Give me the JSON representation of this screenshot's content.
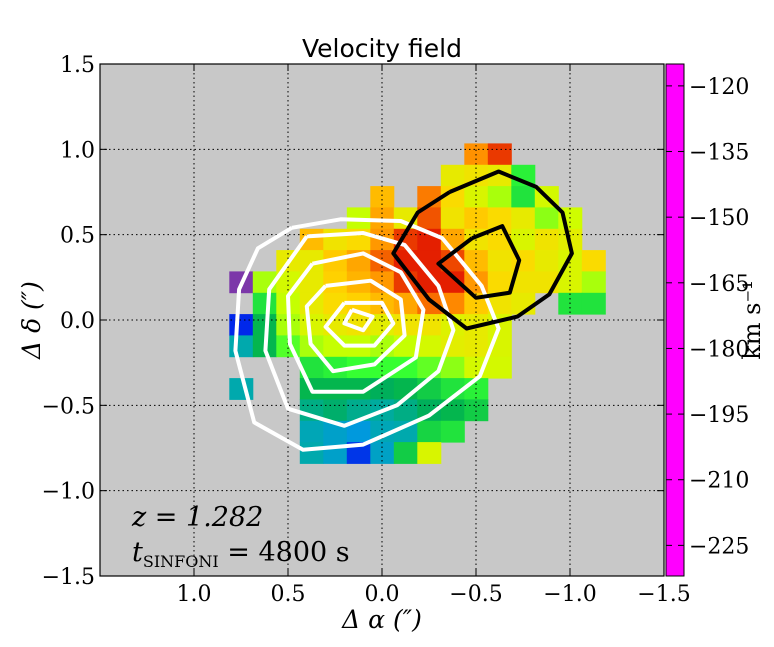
{
  "chart_data": {
    "type": "heatmap",
    "title": "Velocity field",
    "xlabel": "Δ α  (″)",
    "ylabel": "Δ δ  (″)",
    "xlim": [
      1.5,
      -1.5
    ],
    "ylim": [
      -1.5,
      1.5
    ],
    "x_ticks": [
      {
        "value": 1.0,
        "label": "1.0"
      },
      {
        "value": 0.5,
        "label": "0.5"
      },
      {
        "value": 0.0,
        "label": "0.0"
      },
      {
        "value": -0.5,
        "label": "−0.5"
      },
      {
        "value": -1.0,
        "label": "−1.0"
      },
      {
        "value": -1.5,
        "label": "−1.5"
      }
    ],
    "y_ticks": [
      {
        "value": 1.5,
        "label": "1.5"
      },
      {
        "value": 1.0,
        "label": "1.0"
      },
      {
        "value": 0.5,
        "label": "0.5"
      },
      {
        "value": 0.0,
        "label": "0.0"
      },
      {
        "value": -0.5,
        "label": "−0.5"
      },
      {
        "value": -1.0,
        "label": "−1.0"
      },
      {
        "value": -1.5,
        "label": "−1.5"
      }
    ],
    "grid": true,
    "background": "#c8c8c8",
    "pixel_size": 0.125,
    "colorbar": {
      "label": "km s⁻¹",
      "vmin": -232,
      "vmax": -115,
      "ticks": [
        {
          "value": -120,
          "label": "−120"
        },
        {
          "value": -135,
          "label": "−135"
        },
        {
          "value": -150,
          "label": "−150"
        },
        {
          "value": -165,
          "label": "−165"
        },
        {
          "value": -180,
          "label": "−180"
        },
        {
          "value": -195,
          "label": "−195"
        },
        {
          "value": -210,
          "label": "−210"
        },
        {
          "value": -225,
          "label": "−225"
        }
      ],
      "colormap": [
        "#ff00ff",
        "#dc0000",
        "#ff8c00",
        "#ffd700",
        "#ccff00",
        "#33ff33",
        "#00b050",
        "#00aaaa",
        "#0099dd",
        "#0000ee",
        "#550099",
        "#c8a0c8"
      ]
    },
    "pixels": [
      {
        "x": -0.5,
        "y": 0.972,
        "v": -137
      },
      {
        "x": -0.625,
        "y": 0.972,
        "v": -130
      },
      {
        "x": -0.375,
        "y": 0.847,
        "v": -152
      },
      {
        "x": -0.5,
        "y": 0.847,
        "v": -150
      },
      {
        "x": -0.625,
        "y": 0.847,
        "v": -152
      },
      {
        "x": -0.75,
        "y": 0.847,
        "v": -170
      },
      {
        "x": 0.0,
        "y": 0.722,
        "v": -143
      },
      {
        "x": -0.25,
        "y": 0.722,
        "v": -135
      },
      {
        "x": -0.375,
        "y": 0.722,
        "v": -148
      },
      {
        "x": -0.5,
        "y": 0.722,
        "v": -155
      },
      {
        "x": -0.625,
        "y": 0.722,
        "v": -160
      },
      {
        "x": -0.75,
        "y": 0.722,
        "v": -172
      },
      {
        "x": -0.875,
        "y": 0.722,
        "v": -156
      },
      {
        "x": 0.125,
        "y": 0.597,
        "v": -158
      },
      {
        "x": 0.0,
        "y": 0.597,
        "v": -140
      },
      {
        "x": -0.125,
        "y": 0.597,
        "v": -152
      },
      {
        "x": -0.25,
        "y": 0.597,
        "v": -132
      },
      {
        "x": -0.375,
        "y": 0.597,
        "v": -150
      },
      {
        "x": -0.5,
        "y": 0.597,
        "v": -145
      },
      {
        "x": -0.625,
        "y": 0.597,
        "v": -148
      },
      {
        "x": -0.75,
        "y": 0.597,
        "v": -152
      },
      {
        "x": -0.875,
        "y": 0.597,
        "v": -162
      },
      {
        "x": -1.0,
        "y": 0.597,
        "v": -157
      },
      {
        "x": 0.375,
        "y": 0.472,
        "v": -143
      },
      {
        "x": 0.25,
        "y": 0.472,
        "v": -150
      },
      {
        "x": 0.125,
        "y": 0.472,
        "v": -148
      },
      {
        "x": 0.0,
        "y": 0.472,
        "v": -138
      },
      {
        "x": -0.125,
        "y": 0.472,
        "v": -130
      },
      {
        "x": -0.25,
        "y": 0.472,
        "v": -128
      },
      {
        "x": -0.375,
        "y": 0.472,
        "v": -140
      },
      {
        "x": -0.5,
        "y": 0.472,
        "v": -150
      },
      {
        "x": -0.625,
        "y": 0.472,
        "v": -148
      },
      {
        "x": -0.75,
        "y": 0.472,
        "v": -155
      },
      {
        "x": -0.875,
        "y": 0.472,
        "v": -150
      },
      {
        "x": -1.0,
        "y": 0.472,
        "v": -153
      },
      {
        "x": 0.5,
        "y": 0.347,
        "v": -152
      },
      {
        "x": 0.375,
        "y": 0.347,
        "v": -152
      },
      {
        "x": 0.25,
        "y": 0.347,
        "v": -145
      },
      {
        "x": 0.125,
        "y": 0.347,
        "v": -140
      },
      {
        "x": 0.0,
        "y": 0.347,
        "v": -133
      },
      {
        "x": -0.125,
        "y": 0.347,
        "v": -128
      },
      {
        "x": -0.25,
        "y": 0.347,
        "v": -128
      },
      {
        "x": -0.375,
        "y": 0.347,
        "v": -131
      },
      {
        "x": -0.5,
        "y": 0.347,
        "v": -143
      },
      {
        "x": -0.625,
        "y": 0.347,
        "v": -150
      },
      {
        "x": -0.75,
        "y": 0.347,
        "v": -148
      },
      {
        "x": -0.875,
        "y": 0.347,
        "v": -152
      },
      {
        "x": -1.0,
        "y": 0.347,
        "v": -155
      },
      {
        "x": -1.125,
        "y": 0.347,
        "v": -148
      },
      {
        "x": 0.75,
        "y": 0.222,
        "v": -225
      },
      {
        "x": 0.625,
        "y": 0.222,
        "v": -160
      },
      {
        "x": 0.5,
        "y": 0.222,
        "v": -156
      },
      {
        "x": 0.375,
        "y": 0.222,
        "v": -152
      },
      {
        "x": 0.25,
        "y": 0.222,
        "v": -146
      },
      {
        "x": 0.125,
        "y": 0.222,
        "v": -142
      },
      {
        "x": 0.0,
        "y": 0.222,
        "v": -138
      },
      {
        "x": -0.125,
        "y": 0.222,
        "v": -130
      },
      {
        "x": -0.25,
        "y": 0.222,
        "v": -128
      },
      {
        "x": -0.375,
        "y": 0.222,
        "v": -128
      },
      {
        "x": -0.5,
        "y": 0.222,
        "v": -138
      },
      {
        "x": -0.625,
        "y": 0.222,
        "v": -148
      },
      {
        "x": -0.75,
        "y": 0.222,
        "v": -150
      },
      {
        "x": -0.875,
        "y": 0.222,
        "v": -150
      },
      {
        "x": -1.0,
        "y": 0.222,
        "v": -155
      },
      {
        "x": -1.125,
        "y": 0.222,
        "v": -160
      },
      {
        "x": 0.625,
        "y": 0.097,
        "v": -172
      },
      {
        "x": 0.5,
        "y": 0.097,
        "v": -158
      },
      {
        "x": 0.375,
        "y": 0.097,
        "v": -152
      },
      {
        "x": 0.25,
        "y": 0.097,
        "v": -148
      },
      {
        "x": 0.125,
        "y": 0.097,
        "v": -146
      },
      {
        "x": 0.0,
        "y": 0.097,
        "v": -143
      },
      {
        "x": -0.125,
        "y": 0.097,
        "v": -140
      },
      {
        "x": -0.25,
        "y": 0.097,
        "v": -134
      },
      {
        "x": -0.375,
        "y": 0.097,
        "v": -136
      },
      {
        "x": -0.5,
        "y": 0.097,
        "v": -145
      },
      {
        "x": -0.625,
        "y": 0.097,
        "v": -150
      },
      {
        "x": -0.75,
        "y": 0.097,
        "v": -152
      },
      {
        "x": -1.0,
        "y": 0.097,
        "v": -172
      },
      {
        "x": -1.125,
        "y": 0.097,
        "v": -172
      },
      {
        "x": 0.75,
        "y": -0.028,
        "v": -208
      },
      {
        "x": 0.625,
        "y": -0.028,
        "v": -178
      },
      {
        "x": 0.5,
        "y": -0.028,
        "v": -160
      },
      {
        "x": 0.375,
        "y": -0.028,
        "v": -155
      },
      {
        "x": 0.25,
        "y": -0.028,
        "v": -152
      },
      {
        "x": 0.125,
        "y": -0.028,
        "v": -150
      },
      {
        "x": 0.0,
        "y": -0.028,
        "v": -153
      },
      {
        "x": -0.125,
        "y": -0.028,
        "v": -150
      },
      {
        "x": -0.25,
        "y": -0.028,
        "v": -150
      },
      {
        "x": -0.375,
        "y": -0.028,
        "v": -154
      },
      {
        "x": -0.5,
        "y": -0.028,
        "v": -152
      },
      {
        "x": -0.625,
        "y": -0.028,
        "v": -155
      },
      {
        "x": 0.75,
        "y": -0.153,
        "v": -190
      },
      {
        "x": 0.625,
        "y": -0.153,
        "v": -178
      },
      {
        "x": 0.5,
        "y": -0.153,
        "v": -166
      },
      {
        "x": 0.375,
        "y": -0.153,
        "v": -160
      },
      {
        "x": 0.25,
        "y": -0.153,
        "v": -158
      },
      {
        "x": 0.125,
        "y": -0.153,
        "v": -158
      },
      {
        "x": 0.0,
        "y": -0.153,
        "v": -160
      },
      {
        "x": -0.125,
        "y": -0.153,
        "v": -158
      },
      {
        "x": -0.25,
        "y": -0.153,
        "v": -156
      },
      {
        "x": -0.375,
        "y": -0.153,
        "v": -153
      },
      {
        "x": -0.5,
        "y": -0.153,
        "v": -152
      },
      {
        "x": -0.625,
        "y": -0.153,
        "v": -155
      },
      {
        "x": 0.375,
        "y": -0.278,
        "v": -172
      },
      {
        "x": 0.25,
        "y": -0.278,
        "v": -170
      },
      {
        "x": 0.125,
        "y": -0.278,
        "v": -168
      },
      {
        "x": 0.0,
        "y": -0.278,
        "v": -168
      },
      {
        "x": -0.125,
        "y": -0.278,
        "v": -168
      },
      {
        "x": -0.25,
        "y": -0.278,
        "v": -165
      },
      {
        "x": -0.375,
        "y": -0.278,
        "v": -162
      },
      {
        "x": -0.5,
        "y": -0.278,
        "v": -156
      },
      {
        "x": -0.625,
        "y": -0.278,
        "v": -156
      },
      {
        "x": 0.75,
        "y": -0.403,
        "v": -190
      },
      {
        "x": 0.375,
        "y": -0.403,
        "v": -178
      },
      {
        "x": 0.25,
        "y": -0.403,
        "v": -178
      },
      {
        "x": 0.125,
        "y": -0.403,
        "v": -178
      },
      {
        "x": 0.0,
        "y": -0.403,
        "v": -180
      },
      {
        "x": -0.125,
        "y": -0.403,
        "v": -178
      },
      {
        "x": -0.25,
        "y": -0.403,
        "v": -175
      },
      {
        "x": -0.375,
        "y": -0.403,
        "v": -172
      },
      {
        "x": -0.5,
        "y": -0.403,
        "v": -170
      },
      {
        "x": 0.375,
        "y": -0.528,
        "v": -185
      },
      {
        "x": 0.25,
        "y": -0.528,
        "v": -182
      },
      {
        "x": 0.125,
        "y": -0.528,
        "v": -186
      },
      {
        "x": 0.0,
        "y": -0.528,
        "v": -188
      },
      {
        "x": -0.125,
        "y": -0.528,
        "v": -185
      },
      {
        "x": -0.25,
        "y": -0.528,
        "v": -180
      },
      {
        "x": -0.375,
        "y": -0.528,
        "v": -178
      },
      {
        "x": -0.5,
        "y": -0.528,
        "v": -175
      },
      {
        "x": 0.375,
        "y": -0.653,
        "v": -192
      },
      {
        "x": 0.25,
        "y": -0.653,
        "v": -196
      },
      {
        "x": 0.125,
        "y": -0.653,
        "v": -200
      },
      {
        "x": 0.0,
        "y": -0.653,
        "v": -192
      },
      {
        "x": -0.125,
        "y": -0.653,
        "v": -190
      },
      {
        "x": -0.25,
        "y": -0.653,
        "v": -174
      },
      {
        "x": -0.375,
        "y": -0.653,
        "v": -172
      },
      {
        "x": 0.375,
        "y": -0.778,
        "v": -190
      },
      {
        "x": 0.25,
        "y": -0.778,
        "v": -196
      },
      {
        "x": 0.125,
        "y": -0.778,
        "v": -207
      },
      {
        "x": 0.0,
        "y": -0.778,
        "v": -195
      },
      {
        "x": -0.125,
        "y": -0.778,
        "v": -175
      },
      {
        "x": -0.25,
        "y": -0.778,
        "v": -155
      }
    ],
    "contours_white": [
      [
        [
          0.48,
          0.54
        ],
        [
          0.22,
          0.59
        ],
        [
          -0.1,
          0.58
        ],
        [
          -0.32,
          0.48
        ],
        [
          -0.53,
          0.2
        ],
        [
          -0.62,
          -0.05
        ],
        [
          -0.52,
          -0.33
        ],
        [
          -0.25,
          -0.56
        ],
        [
          0.1,
          -0.73
        ],
        [
          0.42,
          -0.76
        ],
        [
          0.68,
          -0.6
        ],
        [
          0.78,
          -0.18
        ],
        [
          0.76,
          0.18
        ],
        [
          0.66,
          0.42
        ],
        [
          0.48,
          0.54
        ]
      ],
      [
        [
          0.4,
          0.49
        ],
        [
          0.1,
          0.51
        ],
        [
          -0.12,
          0.44
        ],
        [
          -0.3,
          0.2
        ],
        [
          -0.38,
          -0.06
        ],
        [
          -0.3,
          -0.3
        ],
        [
          -0.08,
          -0.5
        ],
        [
          0.2,
          -0.62
        ],
        [
          0.5,
          -0.52
        ],
        [
          0.62,
          -0.18
        ],
        [
          0.6,
          0.18
        ],
        [
          0.4,
          0.49
        ]
      ],
      [
        [
          0.37,
          0.33
        ],
        [
          0.1,
          0.39
        ],
        [
          -0.1,
          0.28
        ],
        [
          -0.22,
          0.06
        ],
        [
          -0.18,
          -0.22
        ],
        [
          0.1,
          -0.42
        ],
        [
          0.37,
          -0.42
        ],
        [
          0.49,
          -0.14
        ],
        [
          0.5,
          0.14
        ],
        [
          0.37,
          0.33
        ]
      ],
      [
        [
          0.3,
          0.2
        ],
        [
          0.06,
          0.23
        ],
        [
          -0.1,
          0.12
        ],
        [
          -0.12,
          -0.09
        ],
        [
          0.04,
          -0.26
        ],
        [
          0.26,
          -0.3
        ],
        [
          0.38,
          -0.14
        ],
        [
          0.4,
          0.08
        ],
        [
          0.3,
          0.2
        ]
      ],
      [
        [
          0.2,
          0.1
        ],
        [
          0.0,
          0.1
        ],
        [
          -0.06,
          -0.02
        ],
        [
          0.04,
          -0.15
        ],
        [
          0.2,
          -0.15
        ],
        [
          0.3,
          -0.04
        ],
        [
          0.2,
          0.1
        ]
      ],
      [
        [
          0.16,
          0.06
        ],
        [
          0.05,
          0.02
        ],
        [
          0.1,
          -0.06
        ],
        [
          0.2,
          -0.02
        ],
        [
          0.16,
          0.06
        ]
      ]
    ],
    "contours_black": [
      [
        [
          -0.36,
          0.75
        ],
        [
          -0.62,
          0.87
        ],
        [
          -0.82,
          0.78
        ],
        [
          -0.96,
          0.63
        ],
        [
          -1.01,
          0.39
        ],
        [
          -0.89,
          0.15
        ],
        [
          -0.72,
          0.02
        ],
        [
          -0.45,
          -0.05
        ],
        [
          -0.25,
          0.12
        ],
        [
          -0.06,
          0.39
        ],
        [
          -0.19,
          0.63
        ],
        [
          -0.36,
          0.75
        ]
      ],
      [
        [
          -0.48,
          0.48
        ],
        [
          -0.64,
          0.55
        ],
        [
          -0.73,
          0.35
        ],
        [
          -0.68,
          0.16
        ],
        [
          -0.5,
          0.13
        ],
        [
          -0.3,
          0.33
        ],
        [
          -0.48,
          0.48
        ]
      ]
    ]
  },
  "annotations": {
    "redshift": "z = 1.282",
    "exptime_prefix": "t",
    "exptime_sub": "SINFONI",
    "exptime_suffix": " = 4800 s"
  }
}
